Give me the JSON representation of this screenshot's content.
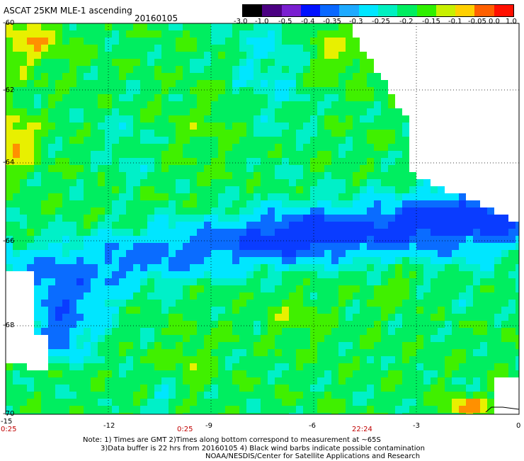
{
  "header": {
    "title": "ASCAT 25KM MLE-1 ascending",
    "date": "20160105"
  },
  "colorbar": {
    "labels": [
      "-3.0",
      "-1.0",
      "-0.5",
      "-0.4",
      "-0.35",
      "-0.3",
      "-0.25",
      "-0.2",
      "-0.15",
      "-0.1",
      "-0.05",
      "0.0",
      "1.0"
    ],
    "colors": [
      "#000000",
      "#4b0082",
      "#7a1fd0",
      "#0010ff",
      "#0a68ff",
      "#1eaaff",
      "#00e6ff",
      "#00f0c0",
      "#00ee60",
      "#30f000",
      "#c8f000",
      "#ffd000",
      "#ff6000",
      "#ff1000"
    ]
  },
  "y_axis": {
    "labels": [
      "-60",
      "-62",
      "-64",
      "-66",
      "-68",
      "-70"
    ]
  },
  "x_axis": {
    "labels": [
      "-15",
      "-12",
      "-9",
      "-6",
      "-3",
      "0"
    ]
  },
  "time_labels": [
    "0:25",
    "0:25",
    "22:24"
  ],
  "notes": [
    "Note: 1) Times are GMT 2)Times along bottom correspond to measurement at ~65S",
    "3)Data buffer is 22 hrs from 20160105 4) Black wind barbs indicate possible contamination",
    "NOAA/NESDIS/Center for Satellite Applications and Research"
  ],
  "map": {
    "lon_range": [
      -15,
      0
    ],
    "lat_range": [
      -70,
      -60
    ],
    "field": "MLE value (colored per colorbar)",
    "palette": {
      "deep_blue": "#0a3cff",
      "blue": "#0a6cff",
      "cyan": "#00e6ff",
      "aqua": "#00f0c8",
      "green": "#00ee60",
      "lime": "#40f000",
      "yellow": "#e8f000",
      "orange": "#ff9000",
      "no_data": "#ffffff"
    }
  }
}
